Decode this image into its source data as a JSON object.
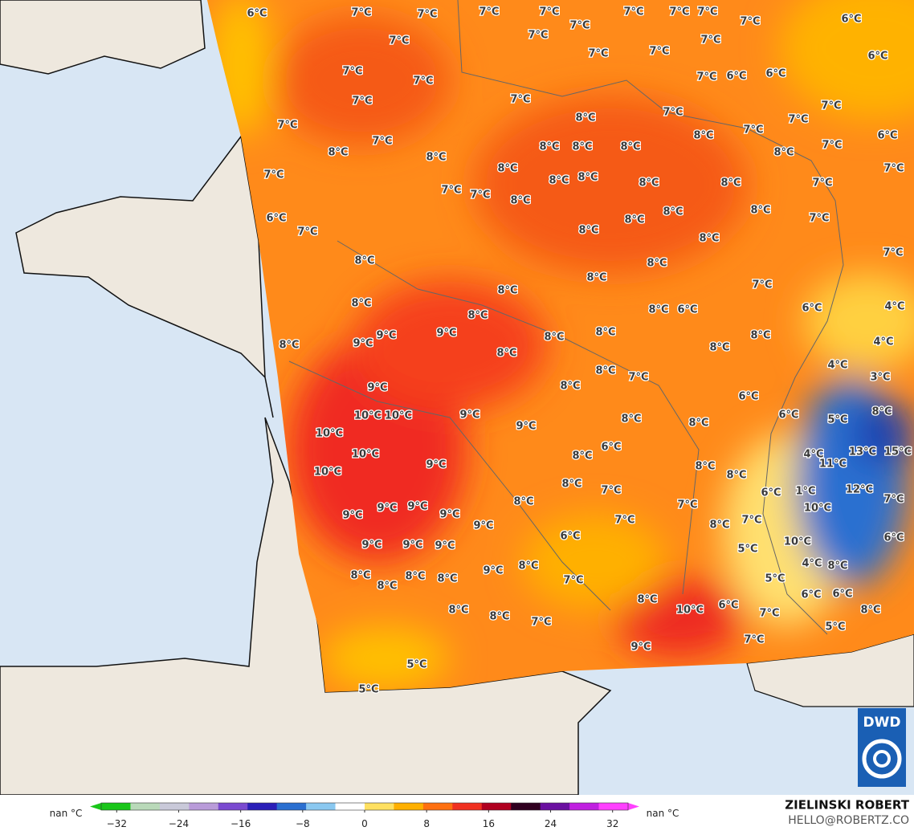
{
  "map": {
    "labels": [
      "6°C",
      "7°C",
      "7°C",
      "7°C",
      "7°C",
      "7°C",
      "7°C",
      "7°C",
      "7°C",
      "6°C",
      "7°C",
      "7°C",
      "7°C",
      "7°C",
      "6°C",
      "7°C",
      "7°C",
      "7°C",
      "7°C",
      "7°C",
      "6°C",
      "6°C",
      "7°C",
      "7°C",
      "7°C",
      "7°C",
      "8°C",
      "7°C",
      "7°C",
      "7°C",
      "8°C",
      "8°C",
      "8°C",
      "8°C",
      "8°C",
      "8°C",
      "7°C",
      "6°C",
      "7°C",
      "8°C",
      "7°C",
      "8°C",
      "8°C",
      "8°C",
      "8°C",
      "8°C",
      "7°C",
      "7°C",
      "7°C",
      "7°C",
      "8°C",
      "6°C",
      "8°C",
      "8°C",
      "8°C",
      "7°C",
      "7°C",
      "8°C",
      "8°C",
      "8°C",
      "8°C",
      "7°C",
      "8°C",
      "7°C",
      "8°C",
      "8°C",
      "8°C",
      "8°C",
      "6°C",
      "6°C",
      "4°C",
      "8°C",
      "9°C",
      "9°C",
      "9°C",
      "8°C",
      "8°C",
      "8°C",
      "8°C",
      "8°C",
      "4°C",
      "4°C",
      "8°C",
      "7°C",
      "3°C",
      "9°C",
      "8°C",
      "6°C",
      "10°C",
      "10°C",
      "9°C",
      "9°C",
      "8°C",
      "8°C",
      "6°C",
      "5°C",
      "8°C",
      "10°C",
      "6°C",
      "10°C",
      "9°C",
      "8°C",
      "4°C",
      "13°C",
      "15°C",
      "11°C",
      "10°C",
      "8°C",
      "8°C",
      "8°C",
      "7°C",
      "6°C",
      "1°C",
      "12°C",
      "9°C",
      "9°C",
      "9°C",
      "9°C",
      "8°C",
      "7°C",
      "7°C",
      "10°C",
      "9°C",
      "7°C",
      "8°C",
      "7°C",
      "6°C",
      "6°C",
      "9°C",
      "9°C",
      "9°C",
      "10°C",
      "5°C",
      "8°C",
      "9°C",
      "8°C",
      "8°C",
      "8°C",
      "8°C",
      "7°C",
      "5°C",
      "4°C",
      "8°C",
      "8°C",
      "6°C",
      "6°C",
      "6°C",
      "10°C",
      "7°C",
      "8°C",
      "8°C",
      "8°C",
      "7°C",
      "5°C",
      "9°C",
      "7°C",
      "5°C",
      "5°C"
    ]
  },
  "colorbar": {
    "left_label": "nan °C",
    "right_label": "nan °C",
    "lim": [
      -34,
      34
    ],
    "ticks": [
      {
        "value": -32,
        "label": "−32"
      },
      {
        "value": -24,
        "label": "−24"
      },
      {
        "value": -16,
        "label": "−16"
      },
      {
        "value": -8,
        "label": "−8"
      },
      0,
      8,
      16,
      24,
      32
    ],
    "colors": [
      "#19c619",
      "#b9d9b9",
      "#c9c9d9",
      "#b99bd9",
      "#7a4ad0",
      "#2a1fb8",
      "#2a6fd0",
      "#8ac8f0",
      "#ffffff",
      "#ffe060",
      "#ffb000",
      "#ff7010",
      "#f03020",
      "#b00020",
      "#300020",
      "#6a10a0",
      "#c020e0",
      "#ff40ff"
    ]
  },
  "credit": {
    "name": "ZIELINSKI ROBERT",
    "contact": "HELLO@ROBERTZ.CO"
  },
  "logo": "DWD"
}
